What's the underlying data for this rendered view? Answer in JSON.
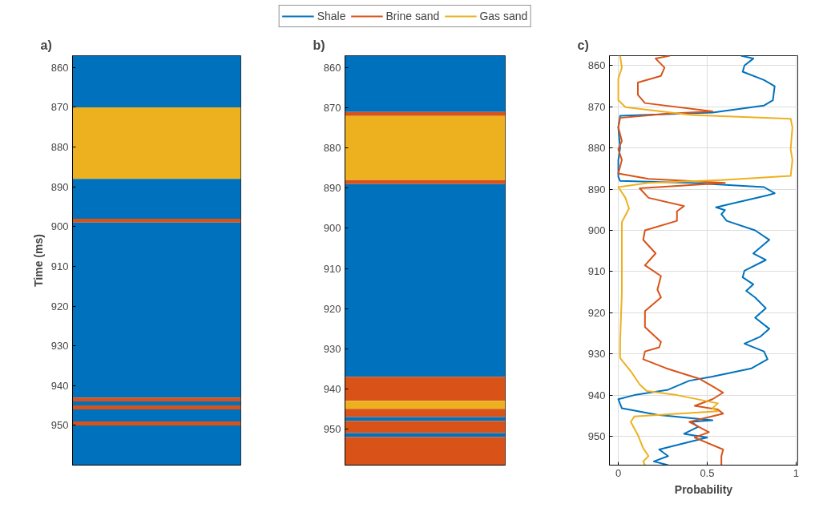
{
  "chart_data": [
    {
      "type": "bar",
      "title": "a)",
      "ylabel": "Time (ms)",
      "categories": [
        null
      ],
      "ylim": [
        960,
        857
      ],
      "yticks": [
        860,
        870,
        880,
        890,
        900,
        910,
        920,
        930,
        940,
        950
      ],
      "tick_labels": "y",
      "grid": false,
      "legend": "top",
      "series": [
        {
          "name": "Shale",
          "color": "#0072bd",
          "base": [
            857
          ],
          "values": [
            13
          ]
        },
        {
          "name": "Gas sand",
          "color": "#edb120",
          "base": [
            870
          ],
          "values": [
            18
          ]
        },
        {
          "color": "#0072bd",
          "base": [
            888
          ],
          "values": [
            10
          ]
        },
        {
          "name": "Brine sand",
          "color": "#d95319",
          "base": [
            898
          ],
          "values": [
            1
          ]
        },
        {
          "color": "#0072bd",
          "base": [
            899
          ],
          "values": [
            44
          ]
        },
        {
          "color": "#d95319",
          "base": [
            943
          ],
          "values": [
            1
          ]
        },
        {
          "color": "#0072bd",
          "base": [
            944
          ],
          "values": [
            1
          ]
        },
        {
          "color": "#d95319",
          "base": [
            945
          ],
          "values": [
            1
          ]
        },
        {
          "color": "#0072bd",
          "base": [
            946
          ],
          "values": [
            3
          ]
        },
        {
          "color": "#d95319",
          "base": [
            949
          ],
          "values": [
            1
          ]
        },
        {
          "color": "#0072bd",
          "base": [
            950
          ],
          "values": [
            10
          ]
        }
      ]
    },
    {
      "type": "bar",
      "title": "b)",
      "categories": [
        null
      ],
      "ylim": [
        959,
        857
      ],
      "yticks": [
        860,
        870,
        880,
        890,
        900,
        910,
        920,
        930,
        940,
        950
      ],
      "tick_labels": "y",
      "grid": false,
      "series": [
        {
          "name": "Shale",
          "color": "#0072bd",
          "base": [
            857
          ],
          "values": [
            14
          ]
        },
        {
          "name": "Brine sand",
          "color": "#d95319",
          "base": [
            871
          ],
          "values": [
            1
          ]
        },
        {
          "name": "Gas sand",
          "color": "#edb120",
          "base": [
            872
          ],
          "values": [
            16
          ]
        },
        {
          "name": "Brine sand",
          "color": "#d95319",
          "base": [
            888
          ],
          "values": [
            1
          ]
        },
        {
          "name": "Shale",
          "color": "#0072bd",
          "base": [
            889
          ],
          "values": [
            48
          ]
        },
        {
          "name": "Brine sand",
          "color": "#d95319",
          "base": [
            937
          ],
          "values": [
            6
          ]
        },
        {
          "name": "Gas sand",
          "color": "#edb120",
          "base": [
            943
          ],
          "values": [
            2
          ]
        },
        {
          "name": "Brine sand",
          "color": "#d95319",
          "base": [
            945
          ],
          "values": [
            2
          ]
        },
        {
          "name": "Shale",
          "color": "#0072bd",
          "base": [
            947
          ],
          "values": [
            1
          ]
        },
        {
          "name": "Brine sand",
          "color": "#d95319",
          "base": [
            948
          ],
          "values": [
            3
          ]
        },
        {
          "name": "Shale",
          "color": "#0072bd",
          "base": [
            951
          ],
          "values": [
            1
          ]
        },
        {
          "name": "Brine sand",
          "color": "#d95319",
          "base": [
            952
          ],
          "values": [
            7
          ]
        }
      ]
    },
    {
      "type": "line",
      "title": "c)",
      "xlabel": "Probability",
      "xlim": [
        -0.05,
        1.01
      ],
      "xticks": [
        0,
        0.5,
        1
      ],
      "ylim": [
        957,
        857.6
      ],
      "yticks": [
        860,
        870,
        880,
        890,
        900,
        910,
        920,
        930,
        940,
        950
      ],
      "grid": true,
      "marker": "none",
      "line_style": "solid",
      "series": [
        {
          "name": "Shale",
          "color": "#0072bd",
          "x": [
            0.69,
            0.76,
            0.71,
            0.7,
            0.82,
            0.88,
            0.87,
            0.82,
            0.53,
            0.01,
            0.0,
            0.01,
            0.0,
            0.0,
            0.01,
            0.41,
            0.82,
            0.88,
            0.84,
            0.55,
            0.6,
            0.58,
            0.61,
            0.77,
            0.85,
            0.76,
            0.83,
            0.71,
            0.7,
            0.76,
            0.72,
            0.77,
            0.83,
            0.77,
            0.85,
            0.8,
            0.71,
            0.82,
            0.84,
            0.75,
            0.53,
            0.4,
            0.28,
            0.09,
            0.0,
            0.02,
            0.22,
            0.53,
            0.41,
            0.45,
            0.37,
            0.5,
            0.23,
            0.28,
            0.2,
            0.28
          ],
          "values": [
            857.6,
            858.3,
            860,
            861.5,
            863.5,
            865,
            868.4,
            869.7,
            871.4,
            872.2,
            875,
            880,
            883,
            887,
            888,
            888.5,
            889.5,
            891,
            891.5,
            894.4,
            895.1,
            896.1,
            897.7,
            900,
            902.3,
            905.6,
            907.2,
            909.8,
            911.4,
            913.1,
            914.7,
            916.3,
            918.9,
            921.2,
            923.9,
            925.8,
            927.5,
            929.4,
            931.3,
            933.5,
            935.5,
            936.5,
            938.7,
            940,
            941,
            943.2,
            944.8,
            946.1,
            946.5,
            947.7,
            949.4,
            950.3,
            953.2,
            954.8,
            956.1,
            957
          ]
        },
        {
          "name": "Brine sand",
          "color": "#d95319",
          "x": [
            0.29,
            0.21,
            0.26,
            0.24,
            0.11,
            0.11,
            0.15,
            0.53,
            0.27,
            0.01,
            0.0,
            0.02,
            0.0,
            0.02,
            0.0,
            0.17,
            0.6,
            0.12,
            0.17,
            0.37,
            0.33,
            0.33,
            0.15,
            0.14,
            0.21,
            0.15,
            0.24,
            0.22,
            0.24,
            0.15,
            0.15,
            0.24,
            0.23,
            0.15,
            0.14,
            0.27,
            0.46,
            0.54,
            0.59,
            0.53,
            0.43,
            0.56,
            0.59,
            0.4,
            0.51,
            0.43,
            0.59,
            0.58,
            0.58
          ],
          "values": [
            857.6,
            858.3,
            860.5,
            862.5,
            864.1,
            867.1,
            869.1,
            871.1,
            871.7,
            872.7,
            875,
            878.3,
            880.3,
            882.9,
            886.2,
            887.5,
            888.5,
            889.8,
            892.1,
            894.1,
            895.4,
            897.7,
            900,
            902.3,
            905.6,
            908.5,
            911.1,
            914.4,
            916.3,
            919.6,
            923.5,
            927.1,
            928.4,
            929.4,
            931.3,
            933.5,
            936.1,
            938.1,
            939.4,
            941,
            942.6,
            943.5,
            944.5,
            946.5,
            949,
            950.3,
            953.2,
            954.8,
            957
          ]
        },
        {
          "name": "Gas sand",
          "color": "#edb120",
          "x": [
            0.01,
            0.02,
            0.0,
            0.0,
            0.04,
            0.41,
            0.97,
            0.98,
            0.97,
            0.98,
            0.97,
            0.58,
            0.17,
            0.0,
            0.04,
            0.06,
            0.02,
            0.02,
            0.01,
            0.01,
            0.07,
            0.12,
            0.16,
            0.33,
            0.56,
            0.53,
            0.56,
            0.09,
            0.07,
            0.11,
            0.14,
            0.17,
            0.14,
            0.15
          ],
          "values": [
            857.6,
            860.5,
            863.2,
            868.4,
            870.1,
            872.0,
            872.9,
            875,
            880.3,
            882.9,
            886.8,
            887.8,
            888.5,
            889.5,
            892.1,
            894.7,
            898,
            915,
            927.1,
            931,
            934.2,
            937.4,
            939,
            940,
            942,
            943.2,
            943.9,
            945.2,
            946.5,
            949.7,
            952.9,
            954.8,
            956.1,
            957
          ]
        }
      ]
    }
  ]
}
